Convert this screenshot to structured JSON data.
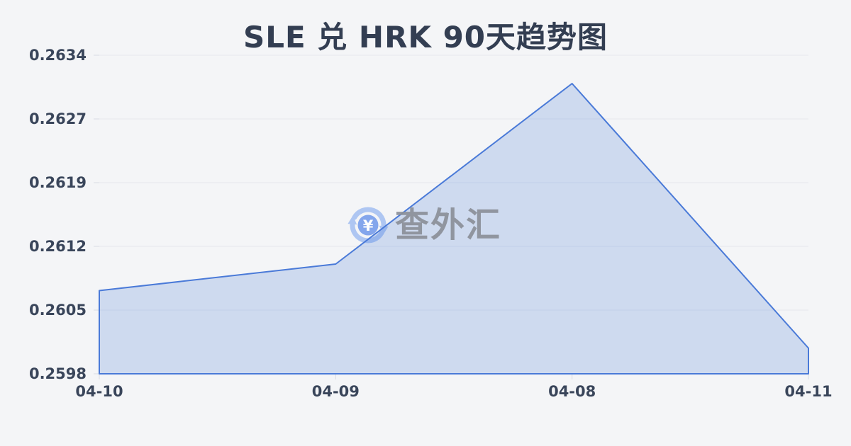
{
  "title": "SLE 兑 HRK 90天趋势图",
  "watermark": {
    "text": "查外汇",
    "icon": "currency-exchange-icon",
    "icon_symbol": "¥"
  },
  "colors": {
    "background": "#f4f5f7",
    "title_text": "#333e52",
    "axis_text": "#39455a",
    "gridline": "#e6e8ee",
    "tick": "#d9dce3",
    "line": "#4a7ad8",
    "area_fill": "#4a7ad8",
    "area_fill_opacity": "0.22",
    "watermark_text": "#8b9099",
    "watermark_icon_arrows": "#abc4f2",
    "watermark_icon_circle": "#7fa2ec",
    "watermark_icon_symbol": "#ffffff"
  },
  "chart_data": {
    "type": "area",
    "title": "SLE 兑 HRK 90天趋势图",
    "categories": [
      "04-10",
      "04-09",
      "04-08",
      "04-11"
    ],
    "values": [
      0.26074,
      0.26104,
      0.26308,
      0.26009
    ],
    "series_name": "SLE/HRK",
    "xlabel": "",
    "ylabel": "",
    "ylim": [
      0.2598,
      0.2634
    ],
    "y_ticks": [
      "0.2634",
      "0.2627",
      "0.2619",
      "0.2612",
      "0.2605",
      "0.2598"
    ],
    "grid": true,
    "legend_position": "none"
  }
}
